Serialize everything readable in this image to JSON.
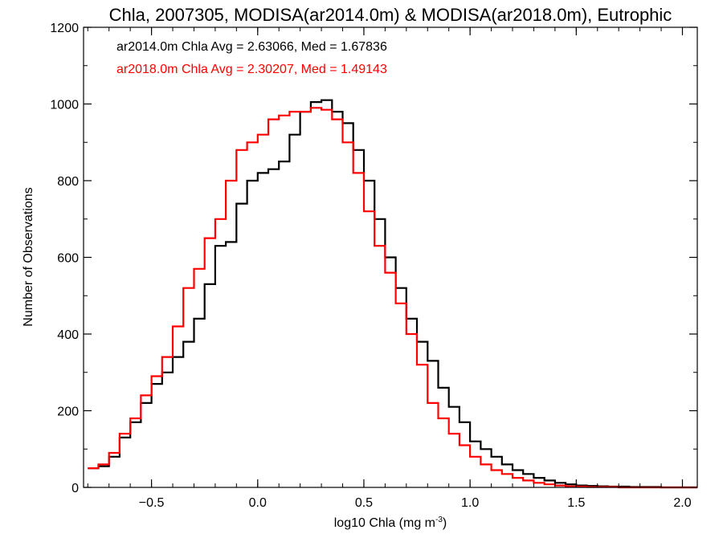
{
  "chart_data": {
    "type": "line",
    "step": true,
    "title": "Chla, 2007305, MODISA(ar2014.0m) & MODISA(ar2018.0m), Eutrophic",
    "xlabel": "log10 Chla (mg m",
    "xlabel_sup": "-3",
    "xlabel_end": ")",
    "ylabel": "Number of Observations",
    "xlim": [
      -0.82,
      2.07
    ],
    "ylim": [
      0,
      1200
    ],
    "x_ticks": [
      -0.5,
      0.0,
      0.5,
      1.0,
      1.5,
      2.0
    ],
    "x_tick_labels": [
      "−0.5",
      "0.0",
      "0.5",
      "1.0",
      "1.5",
      "2.0"
    ],
    "y_ticks": [
      0,
      200,
      400,
      600,
      800,
      1000,
      1200
    ],
    "y_tick_labels": [
      "0",
      "200",
      "400",
      "600",
      "800",
      "1000",
      "1200"
    ],
    "annotations": [
      {
        "text": "ar2014.0m Chla Avg = 2.63066, Med = 1.67836",
        "color": "#000000"
      },
      {
        "text": "ar2018.0m Chla Avg = 2.30207, Med = 1.49143",
        "color": "#ff0000"
      }
    ],
    "series": [
      {
        "name": "ar2014.0m",
        "color": "#000000",
        "x": [
          -0.8,
          -0.75,
          -0.7,
          -0.65,
          -0.6,
          -0.55,
          -0.5,
          -0.45,
          -0.4,
          -0.35,
          -0.3,
          -0.25,
          -0.2,
          -0.15,
          -0.1,
          -0.05,
          0.0,
          0.05,
          0.1,
          0.15,
          0.2,
          0.25,
          0.3,
          0.35,
          0.4,
          0.45,
          0.5,
          0.55,
          0.6,
          0.65,
          0.7,
          0.75,
          0.8,
          0.85,
          0.9,
          0.95,
          1.0,
          1.05,
          1.1,
          1.15,
          1.2,
          1.25,
          1.3,
          1.35,
          1.4,
          1.45,
          1.5,
          1.55,
          1.6,
          1.65,
          1.7,
          1.75,
          1.8,
          1.85,
          1.9,
          1.95,
          2.0,
          2.05
        ],
        "y": [
          50,
          55,
          80,
          130,
          170,
          220,
          270,
          300,
          340,
          380,
          440,
          530,
          630,
          640,
          740,
          800,
          820,
          830,
          850,
          920,
          980,
          1005,
          1010,
          980,
          950,
          880,
          800,
          700,
          600,
          520,
          440,
          380,
          330,
          260,
          210,
          170,
          120,
          100,
          80,
          60,
          45,
          35,
          25,
          18,
          12,
          8,
          5,
          4,
          3,
          2,
          2,
          1,
          1,
          1,
          0,
          0,
          0,
          0
        ]
      },
      {
        "name": "ar2018.0m",
        "color": "#ff0000",
        "x": [
          -0.8,
          -0.75,
          -0.7,
          -0.65,
          -0.6,
          -0.55,
          -0.5,
          -0.45,
          -0.4,
          -0.35,
          -0.3,
          -0.25,
          -0.2,
          -0.15,
          -0.1,
          -0.05,
          0.0,
          0.05,
          0.1,
          0.15,
          0.2,
          0.25,
          0.3,
          0.35,
          0.4,
          0.45,
          0.5,
          0.55,
          0.6,
          0.65,
          0.7,
          0.75,
          0.8,
          0.85,
          0.9,
          0.95,
          1.0,
          1.05,
          1.1,
          1.15,
          1.2,
          1.25,
          1.3,
          1.35,
          1.4,
          1.45,
          1.5,
          1.55,
          1.6,
          1.65,
          1.7,
          1.75,
          1.8,
          1.85,
          1.9,
          1.95,
          2.0,
          2.05
        ],
        "y": [
          50,
          60,
          90,
          140,
          180,
          240,
          290,
          340,
          420,
          520,
          570,
          650,
          700,
          800,
          880,
          900,
          920,
          960,
          970,
          980,
          980,
          990,
          985,
          960,
          900,
          820,
          720,
          630,
          560,
          480,
          400,
          320,
          220,
          180,
          140,
          110,
          80,
          60,
          45,
          35,
          25,
          18,
          12,
          8,
          5,
          3,
          2,
          1,
          1,
          1,
          0,
          0,
          0,
          0,
          0,
          0,
          0,
          0
        ]
      }
    ]
  }
}
